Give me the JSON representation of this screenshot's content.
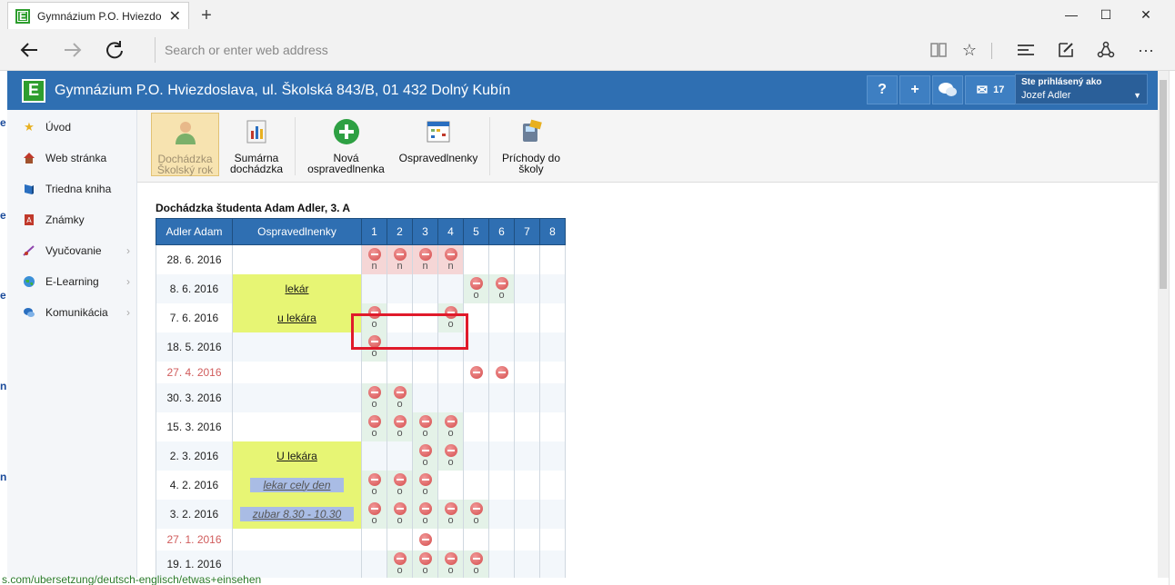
{
  "browser": {
    "tab_title": "Gymnázium P.O. Hviezdo",
    "address_placeholder": "Search or enter web address",
    "page_status_text": "s.com/ubersetzung/deutsch-englisch/etwas+einsehen"
  },
  "app": {
    "title": "Gymnázium P.O. Hviezdoslava, ul. Školská 843/B, 01 432 Dolný Kubín",
    "logo_letter": "E",
    "help_label": "?",
    "add_label": "+",
    "messages_count": "17",
    "user_label": "Ste prihlásený ako",
    "user_name": "Jozef Adler"
  },
  "sidebar": {
    "items": [
      {
        "label": "Úvod",
        "icon": "star-icon",
        "submenu": false
      },
      {
        "label": "Web stránka",
        "icon": "house-icon",
        "submenu": false
      },
      {
        "label": "Triedna kniha",
        "icon": "book-icon",
        "submenu": false
      },
      {
        "label": "Známky",
        "icon": "grade-book-icon",
        "submenu": false
      },
      {
        "label": "Vyučovanie",
        "icon": "teaching-icon",
        "submenu": true
      },
      {
        "label": "E-Learning",
        "icon": "globe-icon",
        "submenu": true
      },
      {
        "label": "Komunikácia",
        "icon": "chat-icon",
        "submenu": true
      }
    ]
  },
  "toolbar": {
    "attendance_year": "Dochádzka Školský rok",
    "summary_attendance": "Sumárna dochádzka",
    "new_excuse": "Nová ospravedlnenka",
    "excuses": "Ospravedlnenky",
    "school_arrivals": "Príchody do školy"
  },
  "attendance": {
    "title": "Dochádzka študenta Adam Adler, 3. A",
    "col_student": "Adler Adam",
    "col_excuses": "Ospravedlnenky",
    "lessons": [
      "1",
      "2",
      "3",
      "4",
      "5",
      "6",
      "7",
      "8"
    ],
    "rows": [
      {
        "date": "28. 6. 2016",
        "red": false,
        "excuse": "",
        "excuse_style": "",
        "marks": [
          "n",
          "n",
          "n",
          "n",
          "",
          "",
          "",
          ""
        ]
      },
      {
        "date": "8. 6. 2016",
        "red": false,
        "excuse": "lekár",
        "excuse_style": "link",
        "marks": [
          "",
          "",
          "",
          "",
          "o",
          "o",
          "",
          ""
        ]
      },
      {
        "date": "7. 6. 2016",
        "red": false,
        "excuse": "u lekára",
        "excuse_style": "link",
        "marks": [
          "o",
          "",
          "",
          "o",
          "",
          "",
          "",
          ""
        ]
      },
      {
        "date": "18. 5. 2016",
        "red": false,
        "excuse": "",
        "excuse_style": "",
        "marks": [
          "o",
          "",
          "",
          "",
          "",
          "",
          "",
          ""
        ]
      },
      {
        "date": "27. 4. 2016",
        "red": true,
        "excuse": "",
        "excuse_style": "",
        "marks": [
          "",
          "",
          "",
          "",
          "-",
          "-",
          "",
          ""
        ]
      },
      {
        "date": "30. 3. 2016",
        "red": false,
        "excuse": "",
        "excuse_style": "",
        "marks": [
          "o",
          "o",
          "",
          "",
          "",
          "",
          "",
          ""
        ]
      },
      {
        "date": "15. 3. 2016",
        "red": false,
        "excuse": "",
        "excuse_style": "",
        "marks": [
          "o",
          "o",
          "o",
          "o",
          "",
          "",
          "",
          ""
        ]
      },
      {
        "date": "2. 3. 2016",
        "red": false,
        "excuse": "U lekára",
        "excuse_style": "link",
        "marks": [
          "",
          "",
          "o",
          "o",
          "",
          "",
          "",
          ""
        ]
      },
      {
        "date": "4. 2. 2016",
        "red": false,
        "excuse": "lekar cely den",
        "excuse_style": "note",
        "marks": [
          "o",
          "o",
          "o",
          "",
          "",
          "",
          "",
          ""
        ]
      },
      {
        "date": "3. 2. 2016",
        "red": false,
        "excuse": "zubar 8.30 - 10.30",
        "excuse_style": "note",
        "marks": [
          "o",
          "o",
          "o",
          "o",
          "o",
          "",
          "",
          ""
        ]
      },
      {
        "date": "27. 1. 2016",
        "red": true,
        "excuse": "",
        "excuse_style": "",
        "marks": [
          "",
          "",
          "-",
          "",
          "",
          "",
          "",
          ""
        ]
      },
      {
        "date": "19. 1. 2016",
        "red": false,
        "excuse": "",
        "excuse_style": "",
        "marks": [
          "",
          "o",
          "o",
          "o",
          "o",
          "",
          "",
          ""
        ]
      }
    ]
  }
}
